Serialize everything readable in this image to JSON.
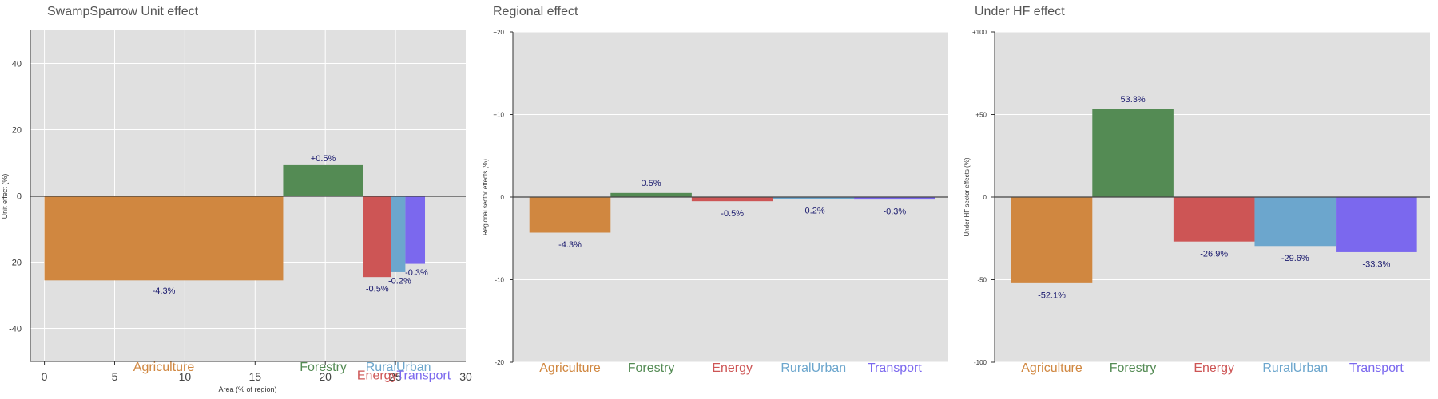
{
  "chart_data": [
    {
      "type": "bar",
      "variant": "area-width",
      "title": "SwampSparrow Unit effect",
      "xlabel": "Area (% of region)",
      "ylabel": "Unit effect (%)",
      "xlim": [
        -1,
        30
      ],
      "ylim": [
        -50,
        50
      ],
      "yticks": [
        -40,
        -20,
        0,
        20,
        40
      ],
      "ytick_labels": [
        "-40",
        "-20",
        "0",
        "20",
        "40"
      ],
      "xticks": [
        0,
        5,
        10,
        15,
        20,
        25,
        30
      ],
      "xtick_labels": [
        "0",
        "5",
        "10",
        "15",
        "20",
        "25",
        "30"
      ],
      "grid": true,
      "bars": [
        {
          "category": "Agriculture",
          "x0": 0,
          "x1": 17,
          "value": -25.5,
          "label": "-4.3%",
          "color": "#D08740",
          "label_x": 8.5,
          "label_y": -28.5
        },
        {
          "category": "Forestry",
          "x0": 17,
          "x1": 22.7,
          "value": 9.3,
          "label": "+0.5%",
          "color": "#548B54",
          "label_x": 19.85,
          "label_y": 11.5
        },
        {
          "category": "Energy",
          "x0": 22.7,
          "x1": 24.7,
          "value": -24.5,
          "label": "-0.5%",
          "color": "#CD5555",
          "label_x": 23.7,
          "label_y": -28
        },
        {
          "category": "RuralUrban",
          "x0": 24.7,
          "x1": 25.7,
          "value": -23,
          "label": "-0.2%",
          "color": "#6CA6CD",
          "label_x": 25.3,
          "label_y": -25.5
        },
        {
          "category": "Transport",
          "x0": 25.7,
          "x1": 27.1,
          "value": -20.5,
          "label": "-0.3%",
          "color": "#7B68EE",
          "label_x": 26.5,
          "label_y": -23
        }
      ],
      "category_labels": [
        {
          "text": "Agriculture",
          "x": 8.5,
          "y": -51.5,
          "color": "#D08740"
        },
        {
          "text": "Forestry",
          "x": 19.85,
          "y": -51.5,
          "color": "#548B54"
        },
        {
          "text": "RuralUrban",
          "x": 25.2,
          "y": -51.5,
          "color": "#6CA6CD"
        },
        {
          "text": "Energy",
          "x": 23.7,
          "y": -54,
          "color": "#CD5555"
        },
        {
          "text": "Transport",
          "x": 27.0,
          "y": -54,
          "color": "#7B68EE"
        }
      ]
    },
    {
      "type": "bar",
      "title": "Regional effect",
      "xlabel": "",
      "ylabel": "Regional sector effects (%)",
      "ylim": [
        -20,
        20
      ],
      "yticks": [
        -20,
        -10,
        0,
        10,
        20
      ],
      "ytick_labels": [
        "-20",
        "-10",
        "0",
        "+10",
        "+20"
      ],
      "grid": true,
      "categories": [
        "Agriculture",
        "Forestry",
        "Energy",
        "RuralUrban",
        "Transport"
      ],
      "values": [
        -4.3,
        0.5,
        -0.5,
        -0.2,
        -0.3
      ],
      "labels": [
        "-4.3%",
        "0.5%",
        "-0.5%",
        "-0.2%",
        "-0.3%"
      ],
      "colors": [
        "#D08740",
        "#548B54",
        "#CD5555",
        "#6CA6CD",
        "#7B68EE"
      ]
    },
    {
      "type": "bar",
      "title": "Under HF effect",
      "xlabel": "",
      "ylabel": "Under HF sector effects (%)",
      "ylim": [
        -100,
        100
      ],
      "yticks": [
        -100,
        -50,
        0,
        50,
        100
      ],
      "ytick_labels": [
        "-100",
        "-50",
        "0",
        "+50",
        "+100"
      ],
      "grid": true,
      "categories": [
        "Agriculture",
        "Forestry",
        "Energy",
        "RuralUrban",
        "Transport"
      ],
      "values": [
        -52.1,
        53.3,
        -26.9,
        -29.6,
        -33.3
      ],
      "labels": [
        "-52.1%",
        "53.3%",
        "-26.9%",
        "-29.6%",
        "-33.3%"
      ],
      "colors": [
        "#D08740",
        "#548B54",
        "#CD5555",
        "#6CA6CD",
        "#7B68EE"
      ]
    }
  ]
}
